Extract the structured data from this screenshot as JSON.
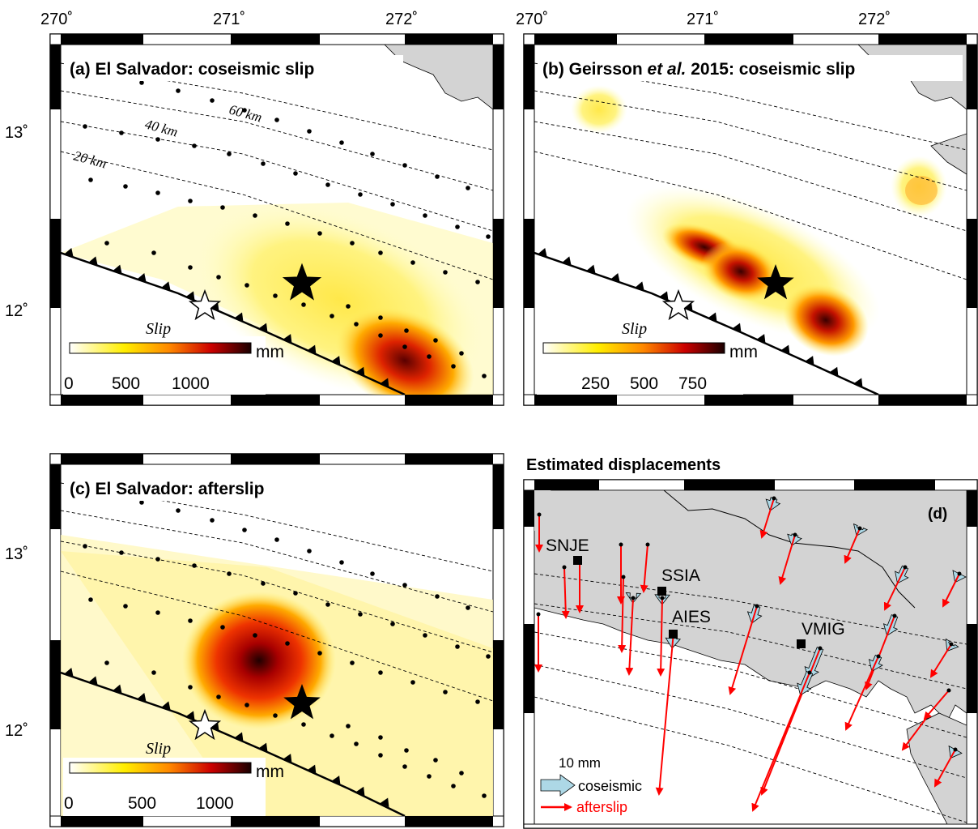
{
  "longitude_ticks": [
    "270˚",
    "271˚",
    "272˚"
  ],
  "latitude_ticks": [
    "13˚",
    "12˚"
  ],
  "panels": {
    "a": {
      "title": "(a) El Salvador: coseismic slip",
      "colorbar": {
        "label": "Slip",
        "unit": "mm",
        "ticks": [
          "0",
          "500",
          "1000"
        ]
      },
      "contours": [
        "20 km",
        "40 km",
        "60 km"
      ]
    },
    "b": {
      "title_prefix": "(b) Geirsson ",
      "title_italic": "et al.",
      "title_suffix": " 2015: coseismic slip",
      "colorbar": {
        "label": "Slip",
        "unit": "mm",
        "ticks": [
          "250",
          "500",
          "750"
        ]
      }
    },
    "c": {
      "title": "(c) El Salvador: afterslip",
      "colorbar": {
        "label": "Slip",
        "unit": "mm",
        "ticks": [
          "0",
          "500",
          "1000"
        ]
      }
    },
    "d": {
      "heading": "Estimated displacements",
      "label": "(d)",
      "stations": [
        "SNJE",
        "SSIA",
        "AIES",
        "VMIG"
      ],
      "legend": {
        "scale": "10 mm",
        "coseismic": "coseismic",
        "afterslip": "afterslip"
      }
    }
  },
  "colors": {
    "land": "#d3d3d3",
    "coseismic_arrow": "#add8e6",
    "afterslip_arrow": "#ff0000",
    "slip_low": "#ffffcc",
    "slip_mid": "#ffcc00",
    "slip_high": "#cc0000",
    "slip_max": "#200000"
  }
}
